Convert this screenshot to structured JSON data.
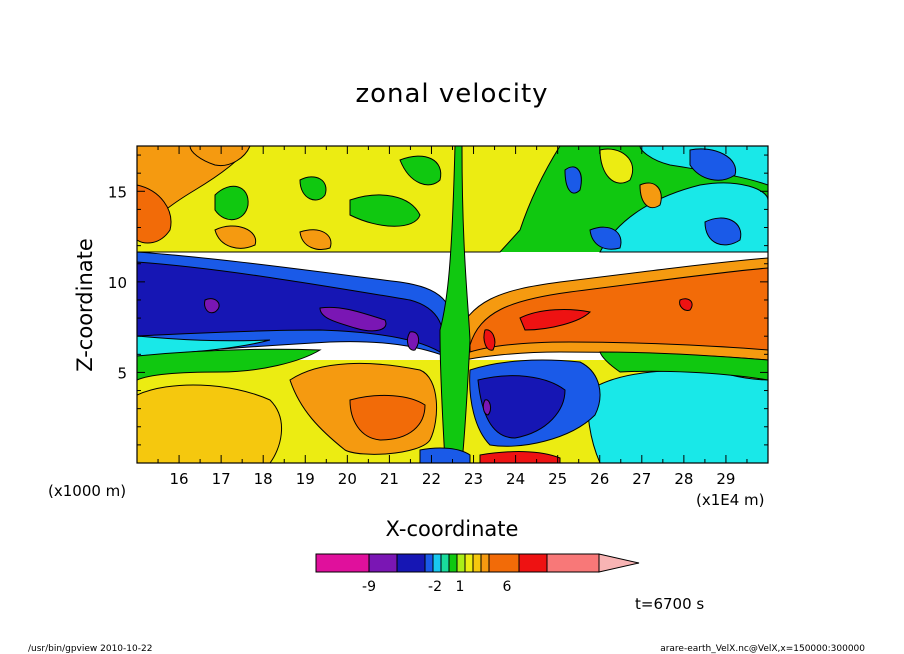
{
  "chart_data": {
    "type": "heatmap",
    "title": "zonal velocity",
    "xlabel": "X-coordinate",
    "ylabel": "Z-coordinate",
    "x_unit_label": "(x1000 m)",
    "x_scale_label": "(x1E4 m)",
    "x_ticks": [
      16,
      17,
      18,
      19,
      20,
      21,
      22,
      23,
      24,
      25,
      26,
      27,
      28,
      29
    ],
    "y_ticks": [
      5,
      10,
      15
    ],
    "xlim": [
      15,
      30
    ],
    "ylim": [
      0,
      17.5
    ],
    "time_label": "t=6700 s",
    "colorbar": {
      "colors": [
        "#e0109c",
        "#7a16b4",
        "#1616b4",
        "#1a5ae8",
        "#19c8f0",
        "#19dc9c",
        "#10c810",
        "#aaee18",
        "#ecec12",
        "#f5c80e",
        "#f59a10",
        "#f26b08",
        "#ee1212",
        "#f87878",
        "#f8b4b4"
      ],
      "tick_labels": [
        "-9",
        "-2",
        "1",
        "6"
      ]
    },
    "colors": {
      "purple": "#7a16b4",
      "dark_blue": "#1616b4",
      "blue": "#1a5ae8",
      "cyan": "#19e8e8",
      "green": "#10c810",
      "yellow": "#ecec12",
      "light_orange": "#f5c80e",
      "orange": "#f59a10",
      "dark_orange": "#f26b08",
      "red": "#ee1212"
    }
  },
  "footer": {
    "left": "/usr/bin/gpview   2010-10-22",
    "right": "arare-earth_VelX.nc@VelX,x=150000:300000"
  }
}
